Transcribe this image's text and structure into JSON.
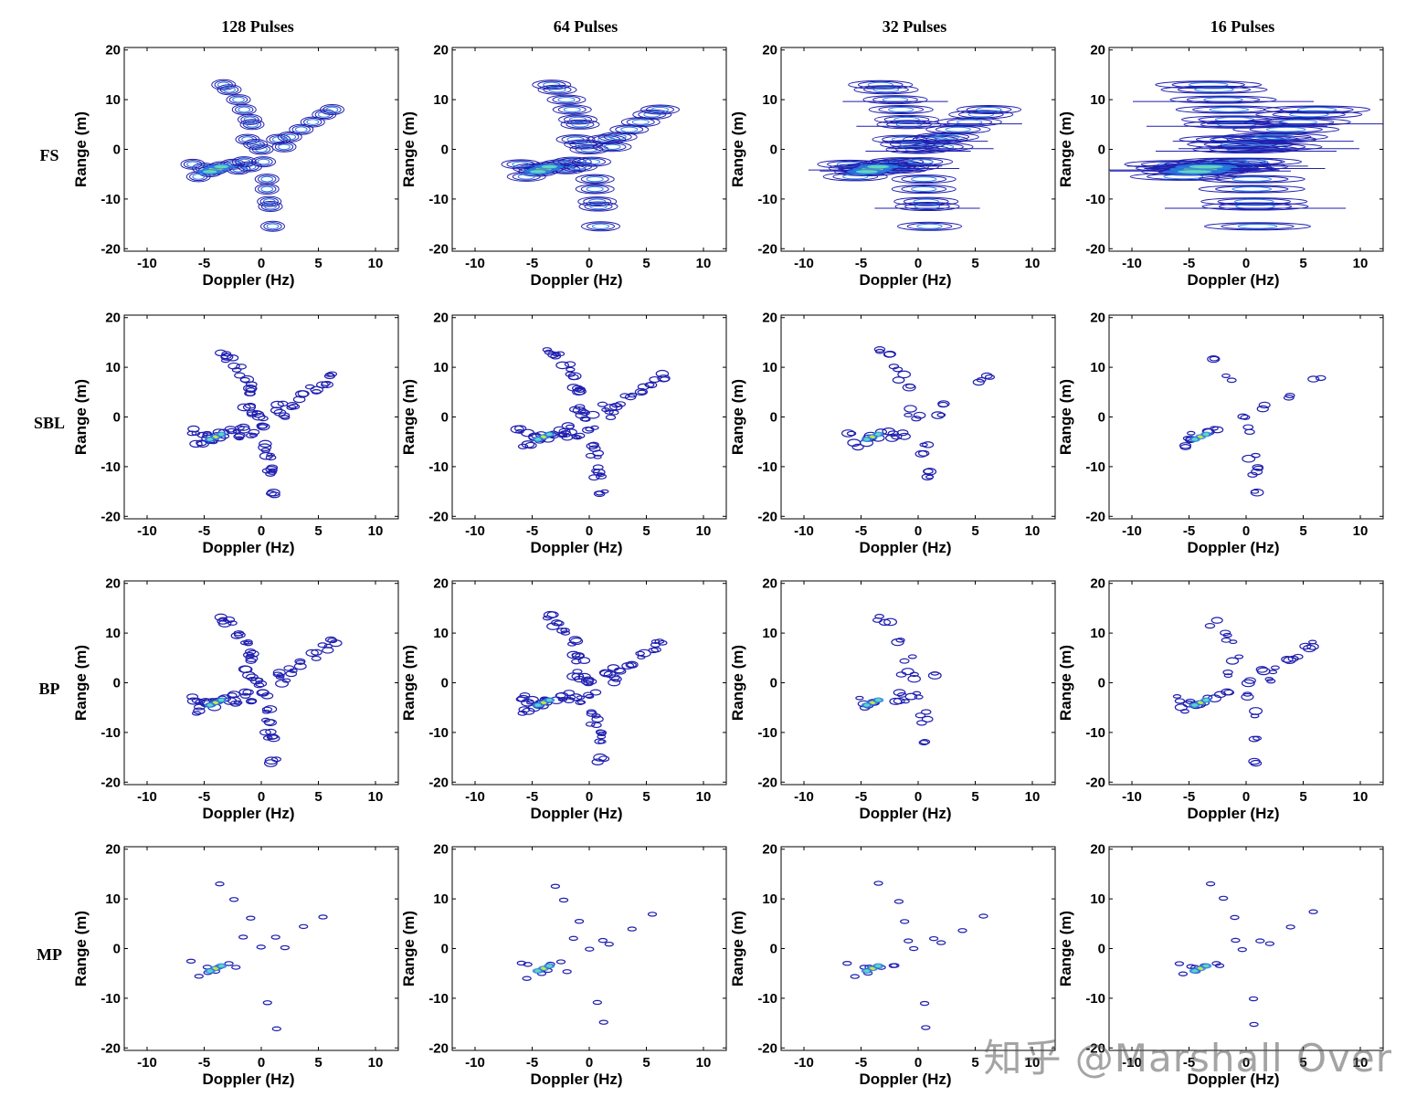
{
  "chart_data": {
    "type": "contour_grid",
    "columns": [
      "128 Pulses",
      "64 Pulses",
      "32 Pulses",
      "16 Pulses"
    ],
    "rows": [
      "FS",
      "SBL",
      "BP",
      "MP"
    ],
    "xlabel": "Doppler (Hz)",
    "ylabel": "Range (m)",
    "xlim": [
      -12,
      12
    ],
    "ylim": [
      -20.5,
      20.5
    ],
    "xticks": [
      -10,
      -5,
      0,
      5,
      10
    ],
    "yticks": [
      -20,
      -10,
      0,
      10,
      20
    ],
    "scatterers": [
      [
        -4.0,
        -4.0
      ],
      [
        -3.5,
        -3.5
      ],
      [
        -4.5,
        -4.5
      ],
      [
        -5.0,
        -3.8
      ],
      [
        -5.5,
        -5.5
      ],
      [
        -6.0,
        -3.0
      ],
      [
        -2.5,
        -3.0
      ],
      [
        -1.5,
        -2.5
      ],
      [
        -2.0,
        -4.0
      ],
      [
        -1.0,
        -3.5
      ],
      [
        -3.3,
        13.0
      ],
      [
        -2.8,
        12.0
      ],
      [
        -2.0,
        10.0
      ],
      [
        -1.5,
        8.0
      ],
      [
        -1.0,
        6.0
      ],
      [
        -0.8,
        5.0
      ],
      [
        -1.2,
        2.0
      ],
      [
        0.2,
        -2.5
      ],
      [
        0.0,
        0.0
      ],
      [
        0.5,
        -6.0
      ],
      [
        0.7,
        -10.5
      ],
      [
        0.8,
        -11.5
      ],
      [
        1.0,
        -15.5
      ],
      [
        0.5,
        -8.0
      ],
      [
        1.5,
        2.0
      ],
      [
        2.5,
        2.5
      ],
      [
        3.5,
        4.0
      ],
      [
        4.5,
        5.5
      ],
      [
        5.5,
        7.0
      ],
      [
        6.2,
        8.0
      ],
      [
        2.0,
        0.5
      ],
      [
        -0.5,
        1.0
      ]
    ],
    "color_scale": {
      "low": "#1f1fb0",
      "mid": "#2a7fe0",
      "high": "#5fd6c2",
      "peak": "#c8e640"
    }
  },
  "watermark": "知乎 @Marshall Over"
}
